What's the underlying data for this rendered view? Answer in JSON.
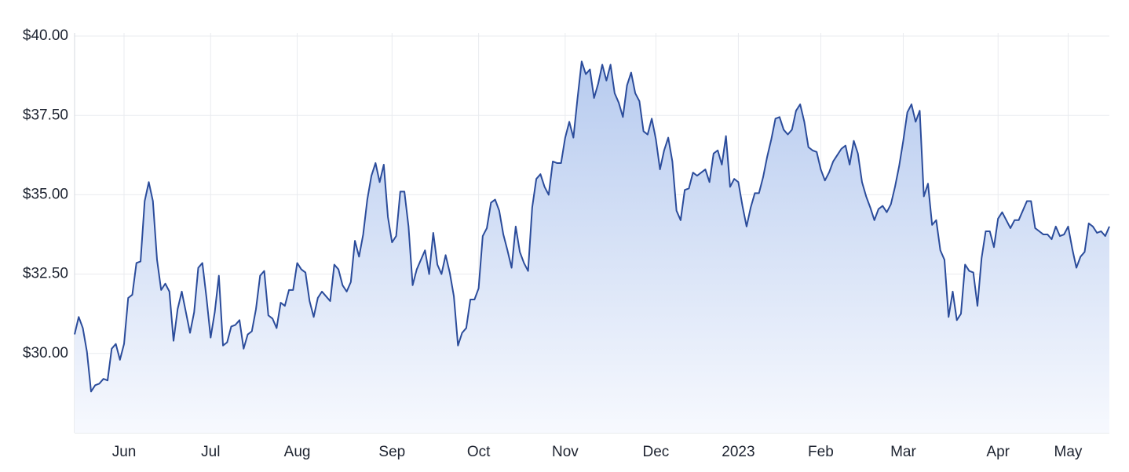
{
  "chart_data": {
    "type": "area-line",
    "categories": [
      null,
      null,
      null,
      null,
      null,
      null,
      null,
      null,
      null,
      null,
      null,
      null,
      "Jun",
      null,
      null,
      null,
      null,
      null,
      null,
      null,
      null,
      null,
      null,
      null,
      null,
      null,
      null,
      null,
      null,
      null,
      null,
      null,
      null,
      "Jul",
      null,
      null,
      null,
      null,
      null,
      null,
      null,
      null,
      null,
      null,
      null,
      null,
      null,
      null,
      null,
      null,
      null,
      null,
      null,
      null,
      "Aug",
      null,
      null,
      null,
      null,
      null,
      null,
      null,
      null,
      null,
      null,
      null,
      null,
      null,
      null,
      null,
      null,
      null,
      null,
      null,
      null,
      null,
      null,
      "Sep",
      null,
      null,
      null,
      null,
      null,
      null,
      null,
      null,
      null,
      null,
      null,
      null,
      null,
      null,
      null,
      null,
      null,
      null,
      null,
      null,
      "Oct",
      null,
      null,
      null,
      null,
      null,
      null,
      null,
      null,
      null,
      null,
      null,
      null,
      null,
      null,
      null,
      null,
      null,
      null,
      null,
      null,
      "Nov",
      null,
      null,
      null,
      null,
      null,
      null,
      null,
      null,
      null,
      null,
      null,
      null,
      null,
      null,
      null,
      null,
      null,
      null,
      null,
      null,
      null,
      "Dec",
      null,
      null,
      null,
      null,
      null,
      null,
      null,
      null,
      null,
      null,
      null,
      null,
      null,
      null,
      null,
      null,
      null,
      null,
      null,
      "2023",
      null,
      null,
      null,
      null,
      null,
      null,
      null,
      null,
      null,
      null,
      null,
      null,
      null,
      null,
      null,
      null,
      null,
      null,
      null,
      "Feb",
      null,
      null,
      null,
      null,
      null,
      null,
      null,
      null,
      null,
      null,
      null,
      null,
      null,
      null,
      null,
      null,
      null,
      null,
      null,
      "Mar",
      null,
      null,
      null,
      null,
      null,
      null,
      null,
      null,
      null,
      null,
      null,
      null,
      null,
      null,
      null,
      null,
      null,
      null,
      null,
      null,
      null,
      null,
      "Apr",
      null,
      null,
      null,
      null,
      null,
      null,
      null,
      null,
      null,
      null,
      null,
      null,
      null,
      null,
      null,
      null,
      "May",
      null,
      null,
      null,
      null,
      null,
      null,
      null,
      null,
      null,
      null
    ],
    "values": [
      30.6,
      31.15,
      30.8,
      30.05,
      28.8,
      29.0,
      29.05,
      29.2,
      29.15,
      30.15,
      30.3,
      29.8,
      30.3,
      31.75,
      31.85,
      32.85,
      32.9,
      34.8,
      35.4,
      34.8,
      32.95,
      32.0,
      32.2,
      31.95,
      30.4,
      31.4,
      31.95,
      31.3,
      30.65,
      31.3,
      32.7,
      32.85,
      31.75,
      30.5,
      31.3,
      32.45,
      30.25,
      30.35,
      30.85,
      30.9,
      31.05,
      30.15,
      30.6,
      30.7,
      31.4,
      32.45,
      32.6,
      31.2,
      31.1,
      30.8,
      31.6,
      31.5,
      32.0,
      32.0,
      32.85,
      32.65,
      32.55,
      31.65,
      31.15,
      31.75,
      31.95,
      31.8,
      31.65,
      32.8,
      32.65,
      32.15,
      31.95,
      32.25,
      33.55,
      33.05,
      33.75,
      34.85,
      35.6,
      36.0,
      35.4,
      35.95,
      34.3,
      33.5,
      33.7,
      35.1,
      35.1,
      34.0,
      32.15,
      32.65,
      32.95,
      33.25,
      32.5,
      33.8,
      32.8,
      32.5,
      33.1,
      32.55,
      31.8,
      30.25,
      30.65,
      30.8,
      31.7,
      31.7,
      32.05,
      33.7,
      33.95,
      34.75,
      34.85,
      34.5,
      33.75,
      33.25,
      32.7,
      34.0,
      33.2,
      32.85,
      32.6,
      34.6,
      35.5,
      35.65,
      35.25,
      35.0,
      36.05,
      36.0,
      36.0,
      36.8,
      37.3,
      36.8,
      38.05,
      39.2,
      38.8,
      38.95,
      38.05,
      38.5,
      39.1,
      38.6,
      39.1,
      38.2,
      37.9,
      37.45,
      38.45,
      38.85,
      38.2,
      37.95,
      37.0,
      36.9,
      37.4,
      36.75,
      35.8,
      36.4,
      36.8,
      36.05,
      34.5,
      34.2,
      35.15,
      35.2,
      35.7,
      35.6,
      35.7,
      35.8,
      35.4,
      36.3,
      36.4,
      35.95,
      36.85,
      35.25,
      35.5,
      35.4,
      34.65,
      34.0,
      34.6,
      35.05,
      35.05,
      35.55,
      36.2,
      36.75,
      37.4,
      37.45,
      37.05,
      36.9,
      37.05,
      37.65,
      37.85,
      37.3,
      36.5,
      36.4,
      36.35,
      35.8,
      35.45,
      35.7,
      36.05,
      36.25,
      36.45,
      36.55,
      35.95,
      36.7,
      36.3,
      35.4,
      34.95,
      34.6,
      34.2,
      34.55,
      34.65,
      34.45,
      34.7,
      35.25,
      35.9,
      36.7,
      37.6,
      37.85,
      37.3,
      37.65,
      34.95,
      35.35,
      34.05,
      34.2,
      33.25,
      32.95,
      31.15,
      31.95,
      31.05,
      31.25,
      32.8,
      32.6,
      32.55,
      31.5,
      33.0,
      33.85,
      33.85,
      33.35,
      34.25,
      34.45,
      34.2,
      33.95,
      34.2,
      34.2,
      34.5,
      34.8,
      34.8,
      33.95,
      33.85,
      33.75,
      33.75,
      33.6,
      34.0,
      33.7,
      33.75,
      34.0,
      33.3,
      32.7,
      33.05,
      33.2,
      34.1,
      34.0,
      33.8,
      33.85,
      33.7,
      34.0
    ],
    "color": "#2b4c9b",
    "fill_top": "#b7cbef",
    "fill_bottom": "#f7f9fe",
    "ylim": [
      27.5,
      40.1
    ],
    "yticks": [
      {
        "value": 30,
        "label": "$30.00"
      },
      {
        "value": 32.5,
        "label": "$32.50"
      },
      {
        "value": 35,
        "label": "$35.00"
      },
      {
        "value": 37.5,
        "label": "$37.50"
      },
      {
        "value": 40,
        "label": "$40.00"
      }
    ],
    "grid": true
  }
}
